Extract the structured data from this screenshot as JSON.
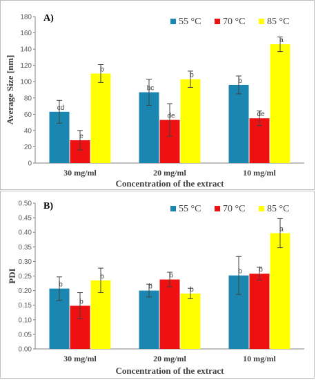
{
  "chart_data": [
    {
      "panel_label": "A)",
      "type": "bar",
      "categories": [
        "30 mg/ml",
        "20 mg/ml",
        "10 mg/ml"
      ],
      "xlabel": "Concentration of the extract",
      "ylabel": "Average Size [nm]",
      "ylim": [
        0,
        180
      ],
      "yticks": [
        0,
        20,
        40,
        60,
        80,
        100,
        120,
        140,
        160,
        180
      ],
      "tick_decimals": 0,
      "legend_position": "top-right",
      "series": [
        {
          "name": "55 °C",
          "color": "#1b87b0",
          "values": [
            63,
            87,
            96
          ],
          "errors": [
            14,
            16,
            11
          ],
          "letters": [
            "cd",
            "bc",
            "b"
          ]
        },
        {
          "name": "70 °C",
          "color": "#ee1111",
          "values": [
            28,
            53,
            55
          ],
          "errors": [
            12,
            20,
            9
          ],
          "letters": [
            "e",
            "de",
            "de"
          ]
        },
        {
          "name": "85 °C",
          "color": "#ffff00",
          "values": [
            110,
            103,
            146
          ],
          "errors": [
            11,
            10,
            9
          ],
          "letters": [
            "b",
            "b",
            "a"
          ]
        }
      ]
    },
    {
      "panel_label": "B)",
      "type": "bar",
      "categories": [
        "30 mg/ml",
        "20 mg/ml",
        "10 mg/ml"
      ],
      "xlabel": "Concentration of the extract",
      "ylabel": "PDI",
      "ylim": [
        0,
        0.5
      ],
      "yticks": [
        0,
        0.05,
        0.1,
        0.15,
        0.2,
        0.25,
        0.3,
        0.35,
        0.4,
        0.45,
        0.5
      ],
      "tick_decimals": 2,
      "legend_position": "top-right",
      "series": [
        {
          "name": "55 °C",
          "color": "#1b87b0",
          "values": [
            0.207,
            0.2,
            0.252
          ],
          "errors": [
            0.04,
            0.022,
            0.065
          ],
          "letters": [
            "b",
            "b",
            "b"
          ]
        },
        {
          "name": "70 °C",
          "color": "#ee1111",
          "values": [
            0.148,
            0.238,
            0.258
          ],
          "errors": [
            0.045,
            0.025,
            0.022
          ],
          "letters": [
            "b",
            "b",
            "b"
          ]
        },
        {
          "name": "85 °C",
          "color": "#ffff00",
          "values": [
            0.235,
            0.19,
            0.397
          ],
          "errors": [
            0.042,
            0.018,
            0.05
          ],
          "letters": [
            "b",
            "b",
            "a"
          ]
        }
      ]
    }
  ]
}
